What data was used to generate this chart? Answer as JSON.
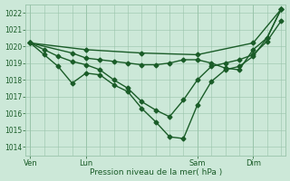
{
  "background_color": "#cce8d8",
  "grid_color": "#99c4aa",
  "line_color": "#1a5c28",
  "text_color": "#1a5c28",
  "xlabel": "Pression niveau de la mer( hPa )",
  "ylim": [
    1013.5,
    1022.5
  ],
  "yticks": [
    1014,
    1015,
    1016,
    1017,
    1018,
    1019,
    1020,
    1021,
    1022
  ],
  "xlim": [
    -2,
    110
  ],
  "xtick_labels": [
    "Ven",
    "Lun",
    "Sam",
    "Dim"
  ],
  "xtick_positions": [
    0,
    24,
    72,
    96
  ],
  "series": [
    {
      "x": [
        0,
        6,
        12,
        18,
        24,
        30,
        36,
        42,
        48,
        54,
        60,
        66,
        72,
        78,
        84,
        90,
        96,
        102,
        108
      ],
      "y": [
        1020.2,
        1019.5,
        1018.8,
        1017.8,
        1018.4,
        1018.3,
        1017.7,
        1017.3,
        1016.3,
        1015.5,
        1014.6,
        1014.5,
        1016.5,
        1017.9,
        1018.6,
        1018.8,
        1019.4,
        1020.5,
        1022.2
      ],
      "marker": "D",
      "markersize": 2.5,
      "linewidth": 1.0
    },
    {
      "x": [
        0,
        6,
        12,
        18,
        24,
        30,
        36,
        42,
        48,
        54,
        60,
        66,
        72,
        78,
        84,
        90,
        96,
        102,
        108
      ],
      "y": [
        1020.2,
        1019.8,
        1019.4,
        1019.1,
        1018.9,
        1018.6,
        1018.0,
        1017.5,
        1016.7,
        1016.2,
        1015.8,
        1016.8,
        1018.0,
        1018.8,
        1019.0,
        1019.2,
        1019.5,
        1020.3,
        1021.5
      ],
      "marker": "D",
      "markersize": 2.5,
      "linewidth": 1.0
    },
    {
      "x": [
        0,
        24,
        48,
        72,
        96,
        108
      ],
      "y": [
        1020.2,
        1019.8,
        1019.6,
        1019.5,
        1020.2,
        1022.2
      ],
      "marker": "D",
      "markersize": 2.5,
      "linewidth": 1.0
    },
    {
      "x": [
        0,
        18,
        24,
        30,
        36,
        42,
        48,
        54,
        60,
        66,
        72,
        78,
        84,
        90,
        96,
        102,
        108
      ],
      "y": [
        1020.2,
        1019.6,
        1019.3,
        1019.2,
        1019.1,
        1019.0,
        1018.9,
        1018.9,
        1019.0,
        1019.2,
        1019.2,
        1019.0,
        1018.7,
        1018.6,
        1019.8,
        1020.5,
        1022.2
      ],
      "marker": "D",
      "markersize": 2.5,
      "linewidth": 1.0
    }
  ]
}
